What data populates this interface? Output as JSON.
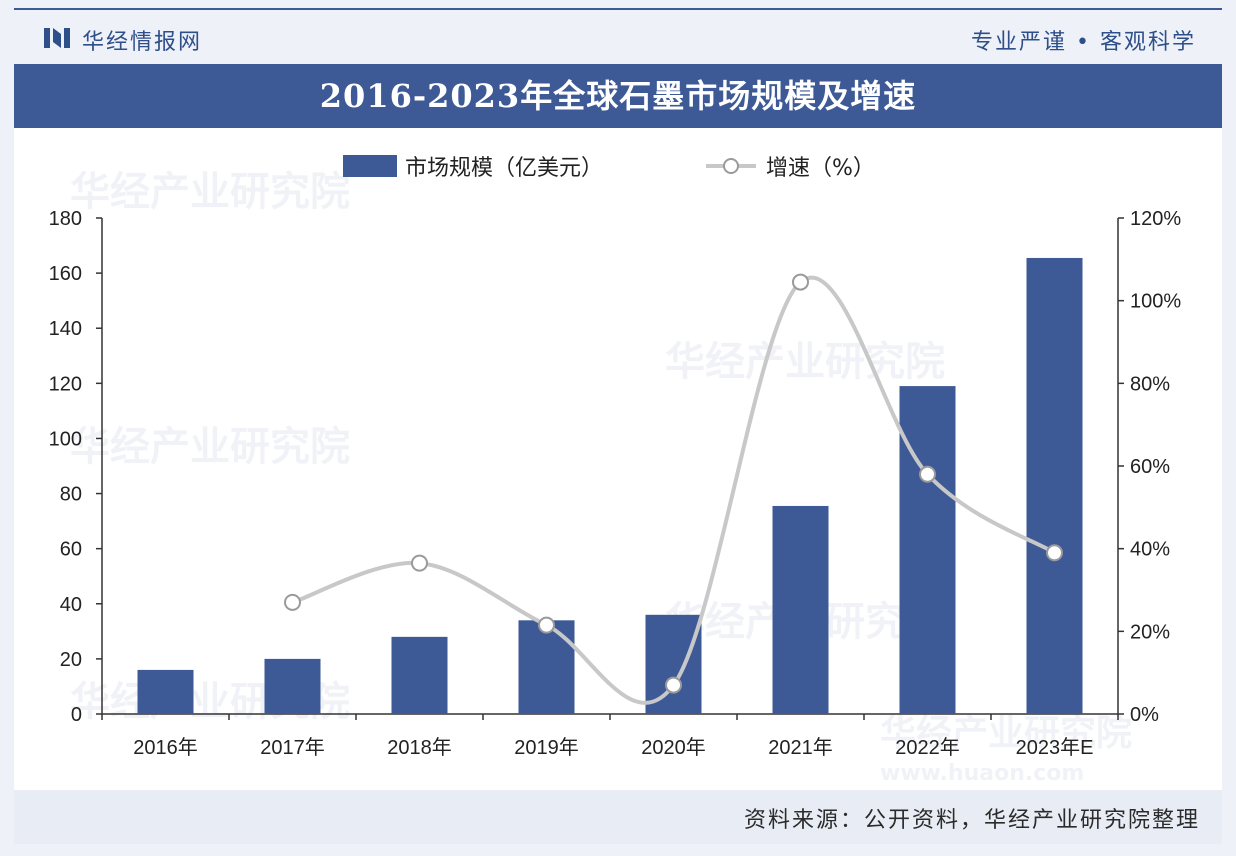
{
  "header": {
    "brand": "华经情报网",
    "slogan": "专业严谨 • 客观科学",
    "title": "2016-2023年全球石墨市场规模及增速"
  },
  "footer": {
    "source": "资料来源：公开资料，华经产业研究院整理"
  },
  "watermark": {
    "text": "华经产业研究院",
    "url": "www.huaon.com"
  },
  "colors": {
    "bar": "#3d5a96",
    "line": "#c8c8c8",
    "title_bg": "#3d5a96"
  },
  "chart_data": {
    "type": "bar",
    "categories": [
      "2016年",
      "2017年",
      "2018年",
      "2019年",
      "2020年",
      "2021年",
      "2022年",
      "2023年E"
    ],
    "series": [
      {
        "name": "市场规模（亿美元）",
        "type": "bar",
        "axis": "left",
        "values": [
          16,
          20,
          28,
          34,
          36,
          75.5,
          119,
          165.5
        ]
      },
      {
        "name": "增速（%）",
        "type": "line",
        "axis": "right",
        "smooth": true,
        "values": [
          null,
          27,
          36.5,
          21.5,
          7,
          104.5,
          58,
          39
        ]
      }
    ],
    "left_axis": {
      "min": 0,
      "max": 180,
      "step": 20,
      "ticks": [
        "0",
        "20",
        "40",
        "60",
        "80",
        "100",
        "120",
        "140",
        "160",
        "180"
      ]
    },
    "right_axis": {
      "min": 0,
      "max": 120,
      "step": 20,
      "ticks": [
        "0%",
        "20%",
        "40%",
        "60%",
        "80%",
        "100%",
        "120%"
      ]
    },
    "legend": "top-center",
    "grid": false
  }
}
